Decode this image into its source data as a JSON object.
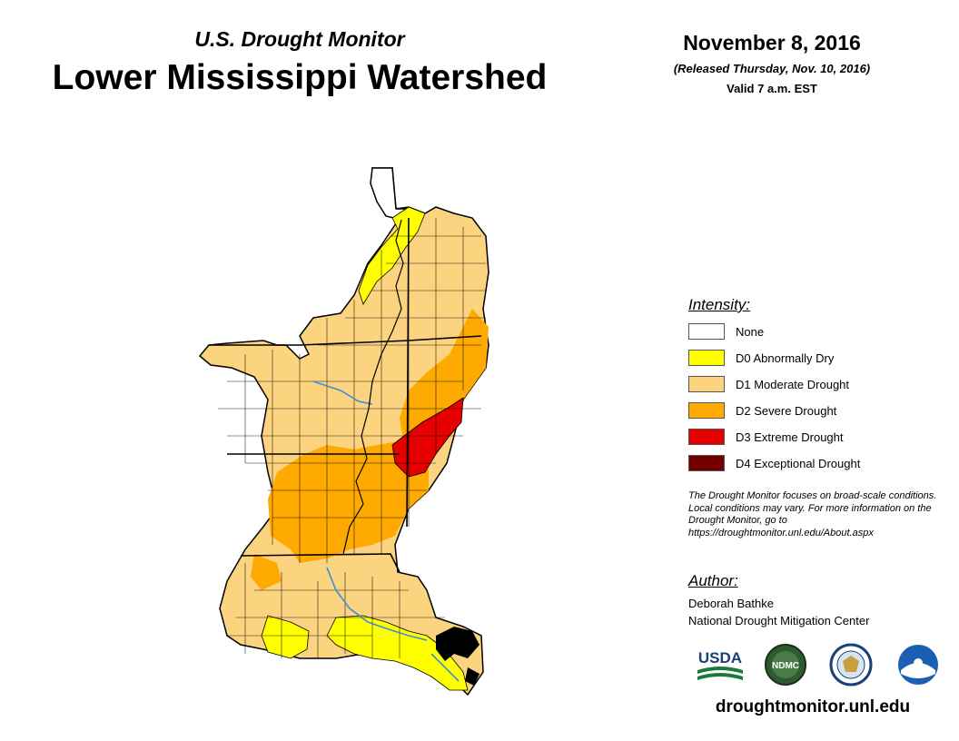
{
  "header": {
    "subtitle": "U.S. Drought Monitor",
    "title": "Lower Mississippi Watershed",
    "date": "November 8, 2016",
    "released": "(Released Thursday, Nov. 10, 2016)",
    "valid": "Valid 7 a.m. EST"
  },
  "legend": {
    "heading": "Intensity:",
    "items": [
      {
        "label": "None",
        "color": "#ffffff"
      },
      {
        "label": "D0 Abnormally Dry",
        "color": "#ffff00"
      },
      {
        "label": "D1 Moderate Drought",
        "color": "#fcd37f"
      },
      {
        "label": "D2 Severe Drought",
        "color": "#ffaa00"
      },
      {
        "label": "D3 Extreme Drought",
        "color": "#e60000"
      },
      {
        "label": "D4 Exceptional Drought",
        "color": "#730000"
      }
    ]
  },
  "note": "The Drought Monitor focuses on broad-scale conditions. Local conditions may vary. For more information on the Drought Monitor, go to https://droughtmonitor.unl.edu/About.aspx",
  "author": {
    "heading": "Author:",
    "name": "Deborah Bathke",
    "organization": "National Drought Mitigation Center"
  },
  "logos": {
    "usda_text": "USDA",
    "ndmc_text": "NDMC",
    "icons": [
      "usda-logo",
      "ndmc-logo",
      "commerce-seal-logo",
      "noaa-logo"
    ]
  },
  "website": "droughtmonitor.unl.edu",
  "map": {
    "river_color": "#3a8fd8",
    "border_color": "#000000"
  }
}
